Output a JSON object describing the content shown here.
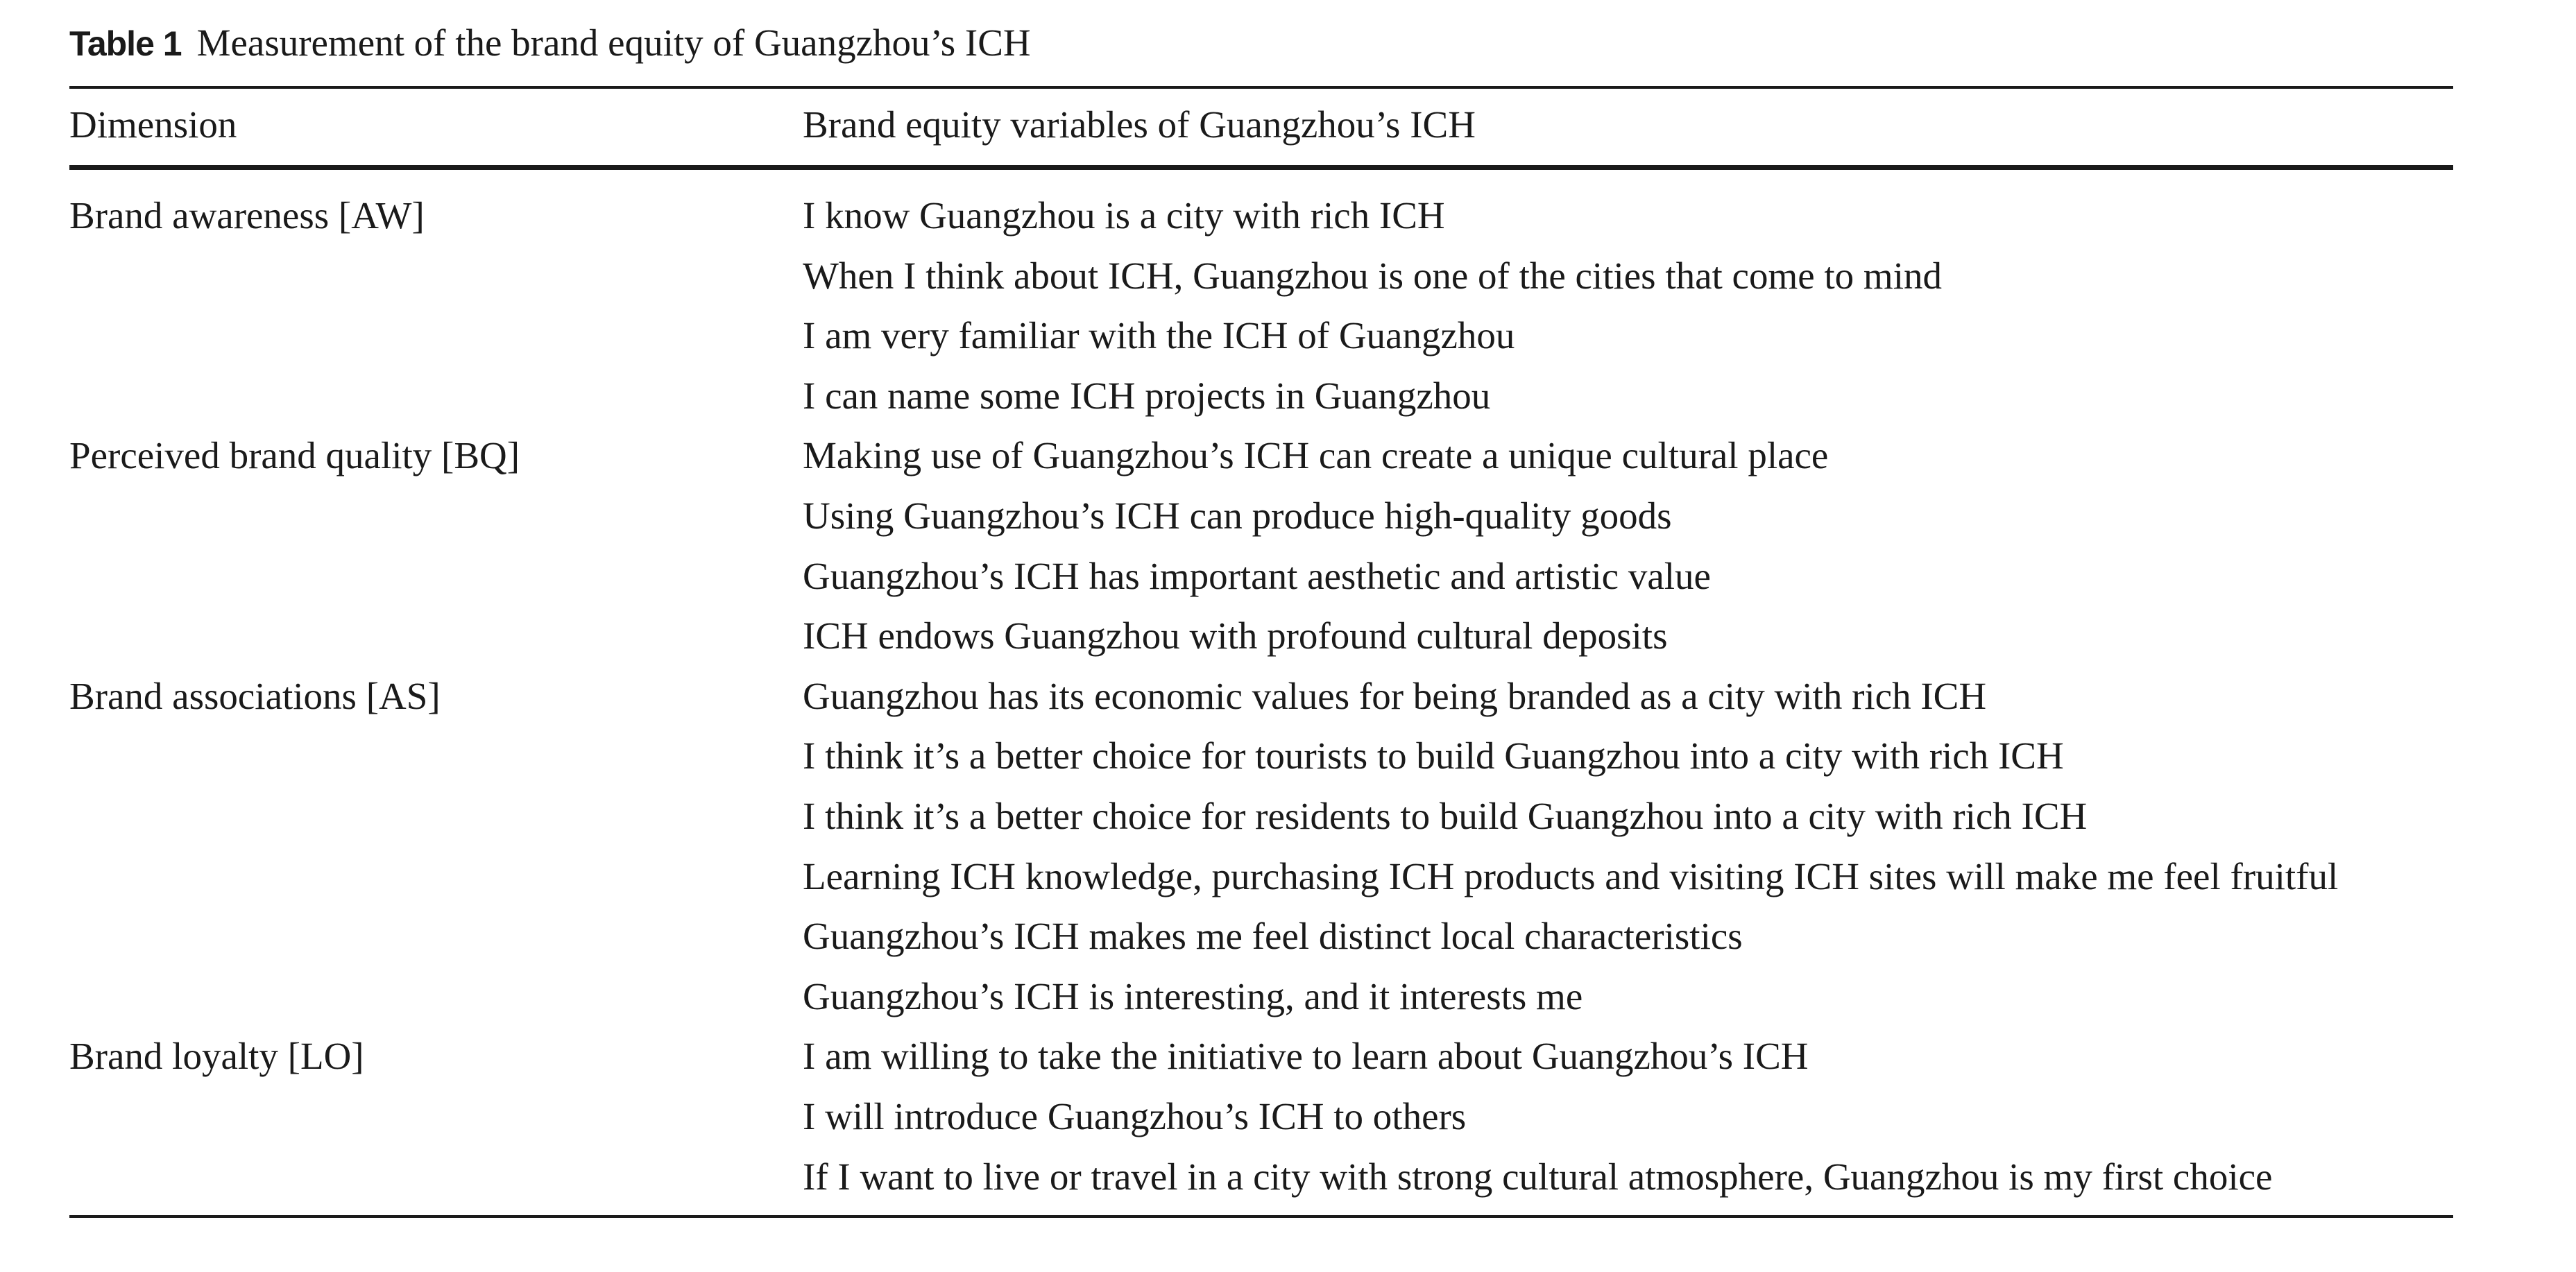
{
  "caption": {
    "label": "Table 1",
    "title": "Measurement of the brand equity of Guangzhou’s ICH"
  },
  "table": {
    "headers": {
      "dimension": "Dimension",
      "variables": "Brand equity variables of Guangzhou’s ICH"
    },
    "groups": [
      {
        "dimension": "Brand awareness [AW]",
        "variables": [
          "I know Guangzhou is a city with rich ICH",
          "When I think about ICH, Guangzhou is one of the cities that come to mind",
          "I am very familiar with the ICH of Guangzhou",
          "I can name some ICH projects in Guangzhou"
        ]
      },
      {
        "dimension": "Perceived brand quality [BQ]",
        "variables": [
          "Making use of Guangzhou’s ICH can create a unique cultural place",
          "Using Guangzhou’s ICH can produce high-quality goods",
          "Guangzhou’s ICH has important aesthetic and artistic value",
          "ICH endows Guangzhou with profound cultural deposits"
        ]
      },
      {
        "dimension": "Brand associations [AS]",
        "variables": [
          "Guangzhou has its economic values for being branded as a city with rich ICH",
          "I think it’s a better choice for tourists to build Guangzhou into a city with rich ICH",
          "I think it’s a better choice for residents to build Guangzhou into a city with rich ICH",
          "Learning ICH knowledge, purchasing ICH products and visiting ICH sites will make me feel fruitful",
          "Guangzhou’s ICH makes me feel distinct local characteristics",
          "Guangzhou’s ICH is interesting, and it interests me"
        ]
      },
      {
        "dimension": "Brand loyalty [LO]",
        "variables": [
          "I am willing to take the initiative to learn about Guangzhou’s ICH",
          "I will introduce Guangzhou’s ICH to others",
          "If I want to live or travel in a city with strong cultural atmosphere, Guangzhou is my first choice"
        ]
      }
    ]
  }
}
